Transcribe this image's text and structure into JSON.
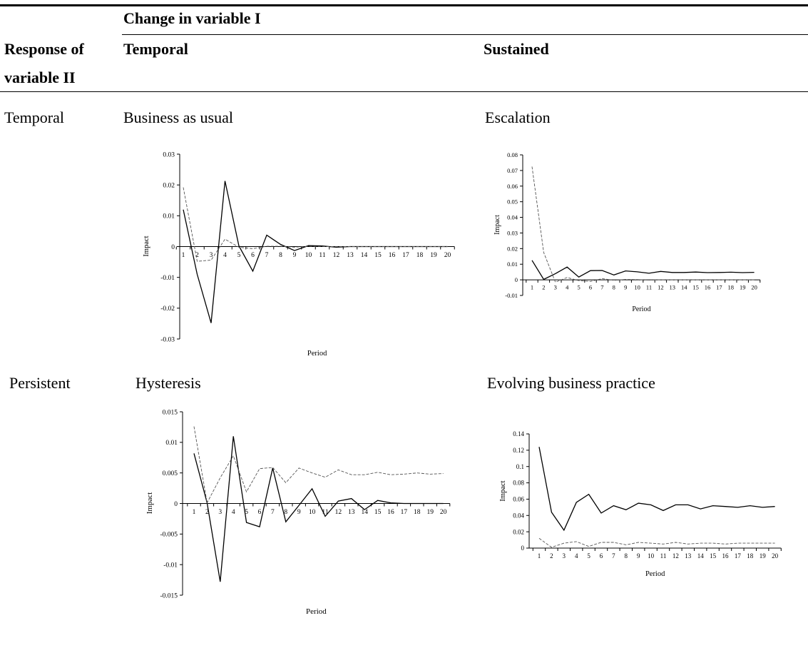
{
  "table": {
    "header_top": "Change in variable I",
    "header_row_label_1": "Response of",
    "header_row_label_2": "variable II",
    "col_temporal": "Temporal",
    "col_sustained": "Sustained",
    "row_temporal": "Temporal",
    "row_persistent": "Persistent",
    "cell_business_as_usual": "Business as usual",
    "cell_escalation": "Escalation",
    "cell_hysteresis": "Hysteresis",
    "cell_evolving": "Evolving business practice"
  },
  "chart_data": [
    {
      "type": "line",
      "title": "",
      "xlabel": "Period",
      "ylabel": "Impact",
      "categories": [
        "1",
        "2",
        "3",
        "4",
        "5",
        "6",
        "7",
        "8",
        "9",
        "10",
        "11",
        "12",
        "13",
        "14",
        "15",
        "16",
        "17",
        "18",
        "19",
        "20"
      ],
      "ylim": [
        -0.03,
        0.03
      ],
      "yticks": [
        -0.03,
        -0.02,
        -0.01,
        0,
        0.01,
        0.02,
        0.03
      ],
      "ytick_labels": [
        "-0.03",
        "-0.02",
        "-0.01",
        "0",
        "0.01",
        "0.02",
        "0.03"
      ],
      "grid": false,
      "series": [
        {
          "style": "solid",
          "values": [
            0.012,
            -0.009,
            -0.0248,
            0.0213,
            0.0002,
            -0.008,
            0.0037,
            0.0007,
            -0.0013,
            0.0003,
            0.0002,
            -0.0002,
            0,
            0,
            0,
            0,
            0,
            0,
            0,
            0
          ]
        },
        {
          "style": "dashed",
          "values": [
            0.0192,
            -0.0048,
            -0.0044,
            0.0024,
            -0.0002,
            -0.0007,
            0.0001,
            0.0001,
            -0.0002,
            0.0001,
            0,
            0,
            0,
            0,
            0,
            0,
            0,
            0,
            0,
            0
          ]
        }
      ]
    },
    {
      "type": "line",
      "title": "",
      "xlabel": "Period",
      "ylabel": "Impact",
      "categories": [
        "1",
        "2",
        "3",
        "4",
        "5",
        "6",
        "7",
        "8",
        "9",
        "10",
        "11",
        "12",
        "13",
        "14",
        "15",
        "16",
        "17",
        "18",
        "19",
        "20"
      ],
      "ylim": [
        -0.01,
        0.08
      ],
      "yticks": [
        -0.01,
        0,
        0.01,
        0.02,
        0.03,
        0.04,
        0.05,
        0.06,
        0.07,
        0.08
      ],
      "ytick_labels": [
        "-0.01",
        "0",
        "0.01",
        "0.02",
        "0.03",
        "0.04",
        "0.05",
        "0.06",
        "0.07",
        "0.08"
      ],
      "grid": false,
      "series": [
        {
          "style": "solid",
          "values": [
            0.0125,
            0.0003,
            0.004,
            0.0082,
            0.0018,
            0.0059,
            0.006,
            0.0031,
            0.0057,
            0.0051,
            0.0042,
            0.0054,
            0.0047,
            0.0047,
            0.005,
            0.0046,
            0.0047,
            0.0049,
            0.0046,
            0.0048
          ]
        },
        {
          "style": "dashed",
          "values": [
            0.0725,
            0.0175,
            -0.0015,
            0.0015,
            -0.0005,
            -0.001,
            0.0008,
            -0.0003,
            0.0003,
            0.0002,
            -0.0002,
            0.0001,
            0,
            0,
            0,
            0,
            0,
            0,
            0,
            0
          ]
        }
      ]
    },
    {
      "type": "line",
      "title": "",
      "xlabel": "Period",
      "ylabel": "Impact",
      "categories": [
        "1",
        "2",
        "3",
        "4",
        "5",
        "6",
        "7",
        "8",
        "9",
        "10",
        "11",
        "12",
        "13",
        "14",
        "15",
        "16",
        "17",
        "18",
        "19",
        "20"
      ],
      "ylim": [
        -0.015,
        0.015
      ],
      "yticks": [
        -0.015,
        -0.01,
        -0.005,
        0,
        0.005,
        0.01,
        0.015
      ],
      "ytick_labels": [
        "-0.015",
        "-0.01",
        "-0.005",
        "0",
        "0.005",
        "0.01",
        "0.015"
      ],
      "grid": false,
      "series": [
        {
          "style": "solid",
          "values": [
            0.0082,
            0.0001,
            -0.0128,
            0.011,
            -0.0031,
            -0.0038,
            0.0058,
            -0.003,
            -0.0003,
            0.0024,
            -0.0021,
            0.0004,
            0.0008,
            -0.001,
            0.0005,
            0.0001,
            0,
            0,
            0,
            0
          ]
        },
        {
          "style": "dashed",
          "values": [
            0.0126,
            0.0001,
            0.0042,
            0.0078,
            0.0019,
            0.0057,
            0.0059,
            0.0034,
            0.0058,
            0.005,
            0.0043,
            0.0055,
            0.0047,
            0.0047,
            0.0051,
            0.0047,
            0.0048,
            0.005,
            0.0048,
            0.0049
          ]
        }
      ]
    },
    {
      "type": "line",
      "title": "",
      "xlabel": "Period",
      "ylabel": "Impact",
      "categories": [
        "1",
        "2",
        "3",
        "4",
        "5",
        "6",
        "7",
        "8",
        "9",
        "10",
        "11",
        "12",
        "13",
        "14",
        "15",
        "16",
        "17",
        "18",
        "19",
        "20"
      ],
      "ylim": [
        0,
        0.14
      ],
      "yticks": [
        0,
        0.02,
        0.04,
        0.06,
        0.08,
        0.1,
        0.12,
        0.14
      ],
      "ytick_labels": [
        "0",
        "0.02",
        "0.04",
        "0.06",
        "0.08",
        "0.1",
        "0.12",
        "0.14"
      ],
      "grid": false,
      "series": [
        {
          "style": "solid",
          "values": [
            0.124,
            0.044,
            0.022,
            0.056,
            0.066,
            0.043,
            0.052,
            0.047,
            0.055,
            0.053,
            0.046,
            0.053,
            0.053,
            0.048,
            0.052,
            0.051,
            0.05,
            0.052,
            0.05,
            0.051
          ]
        },
        {
          "style": "dashed",
          "values": [
            0.012,
            0.001,
            0.006,
            0.008,
            0.002,
            0.007,
            0.007,
            0.004,
            0.007,
            0.006,
            0.005,
            0.007,
            0.005,
            0.006,
            0.006,
            0.005,
            0.006,
            0.006,
            0.006,
            0.006
          ]
        }
      ]
    }
  ]
}
